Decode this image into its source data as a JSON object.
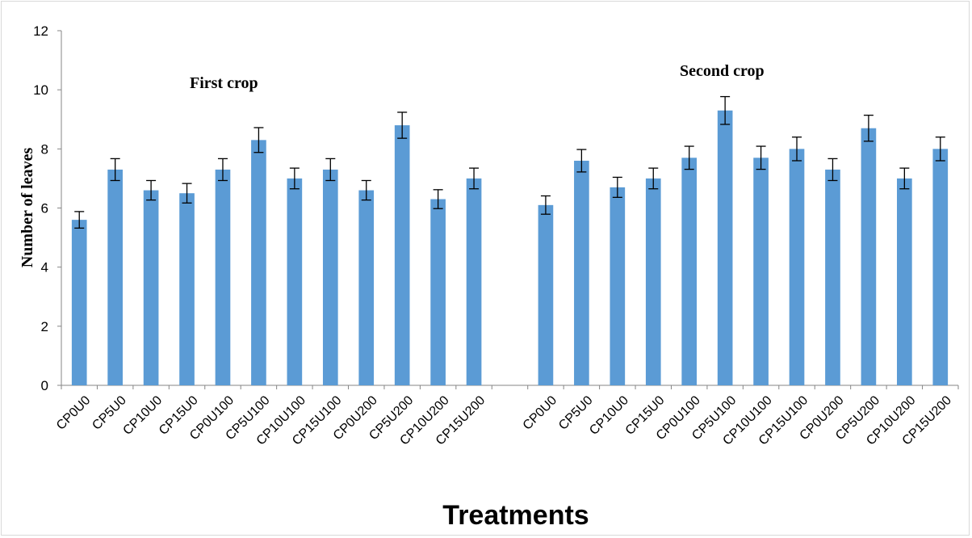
{
  "chart_data": {
    "type": "bar",
    "categories": [
      "CP0U0",
      "CP5U0",
      "CP10U0",
      "CP15U0",
      "CP0U100",
      "CP5U100",
      "CP10U100",
      "CP15U100",
      "CP0U200",
      "CP5U200",
      "CP10U200",
      "CP15U200",
      "CP0U0",
      "CP5U0",
      "CP10U0",
      "CP15U0",
      "CP0U100",
      "CP5U100",
      "CP10U100",
      "CP15U100",
      "CP0U200",
      "CP5U200",
      "CP10U200",
      "CP15U200"
    ],
    "groups": [
      {
        "label": "First crop",
        "values": [
          5.6,
          7.3,
          6.6,
          6.5,
          7.3,
          8.3,
          7.0,
          7.3,
          6.6,
          8.8,
          6.3,
          7.0
        ],
        "errors": [
          0.28,
          0.37,
          0.33,
          0.33,
          0.37,
          0.42,
          0.35,
          0.37,
          0.33,
          0.44,
          0.32,
          0.35
        ]
      },
      {
        "label": "Second crop",
        "values": [
          6.1,
          7.6,
          6.7,
          7.0,
          7.7,
          9.3,
          7.7,
          8.0,
          7.3,
          8.7,
          7.0,
          8.0
        ],
        "errors": [
          0.31,
          0.38,
          0.34,
          0.35,
          0.39,
          0.47,
          0.39,
          0.4,
          0.37,
          0.44,
          0.35,
          0.4
        ]
      }
    ],
    "xlabel": "Treatments",
    "ylabel": "Number of leaves",
    "ylim": [
      0,
      12
    ],
    "yticks": [
      "0",
      "2",
      "4",
      "6",
      "8",
      "10",
      "12"
    ],
    "grid": false,
    "bar_color": "#5b9bd5",
    "error_bar_color": "#000000"
  }
}
